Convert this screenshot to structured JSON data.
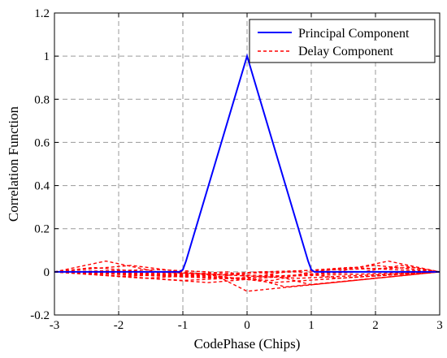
{
  "chart_data": {
    "type": "line",
    "title": "",
    "xlabel": "CodePhase (Chips)",
    "ylabel": "Correlation Function",
    "xlim": [
      -3,
      3
    ],
    "ylim": [
      -0.2,
      1.2
    ],
    "xticks": [
      "-3",
      "-2",
      "-1",
      "0",
      "1",
      "2",
      "3"
    ],
    "yticks": [
      "-0.2",
      "0",
      "0.2",
      "0.4",
      "0.6",
      "0.8",
      "1",
      "1.2"
    ],
    "grid": true,
    "legend_position": "top-right",
    "series": [
      {
        "name": "Principal Component",
        "color": "#0000ff",
        "style": "solid",
        "x": [
          -3,
          -1.05,
          -1,
          -0.95,
          0,
          0.95,
          1,
          1.05,
          3
        ],
        "y": [
          0,
          0,
          0.01,
          0.05,
          1.0,
          0.05,
          0.01,
          0,
          0
        ]
      },
      {
        "name": "Delay Component",
        "color": "#ff0000",
        "style": "dashed",
        "curves": [
          {
            "x": [
              -3,
              -2.4,
              -1.6,
              0.6,
              3
            ],
            "y": [
              0,
              0.02,
              0,
              -0.02,
              0
            ]
          },
          {
            "x": [
              -3,
              -2.2,
              -1.4,
              0.8,
              3
            ],
            "y": [
              0,
              0.05,
              0,
              -0.03,
              0
            ]
          },
          {
            "x": [
              -3,
              -1.8,
              -1.0,
              0.4,
              3
            ],
            "y": [
              0,
              0.03,
              0,
              -0.05,
              0
            ]
          },
          {
            "x": [
              -3,
              -1.4,
              -0.6,
              0.0,
              3
            ],
            "y": [
              0,
              0.01,
              0,
              -0.09,
              0
            ]
          },
          {
            "x": [
              -3,
              -0.9,
              -0.3,
              0.6,
              3
            ],
            "y": [
              0,
              -0.01,
              0,
              -0.07,
              0
            ]
          },
          {
            "x": [
              -3,
              -0.4,
              0.2,
              1.0,
              3
            ],
            "y": [
              0,
              -0.02,
              0,
              -0.06,
              0
            ]
          },
          {
            "x": [
              -3,
              0.0,
              0.6,
              1.6,
              3
            ],
            "y": [
              0,
              -0.03,
              0,
              0.02,
              0
            ]
          },
          {
            "x": [
              -3,
              0.4,
              1.0,
              2.0,
              3
            ],
            "y": [
              0,
              -0.04,
              0,
              0.03,
              0
            ]
          },
          {
            "x": [
              -3,
              -0.6,
              1.4,
              2.2,
              3
            ],
            "y": [
              0,
              -0.05,
              0,
              0.05,
              0
            ]
          },
          {
            "x": [
              -3,
              -1.0,
              1.8,
              2.4,
              3
            ],
            "y": [
              0,
              -0.04,
              0,
              0.03,
              0
            ]
          },
          {
            "x": [
              -3,
              -1.6,
              0.2,
              2.6,
              3
            ],
            "y": [
              0,
              -0.03,
              0,
              0.02,
              0
            ]
          },
          {
            "x": [
              -3,
              -2.0,
              0.8,
              1.4,
              3
            ],
            "y": [
              0,
              -0.02,
              0,
              -0.03,
              0
            ]
          }
        ]
      }
    ]
  }
}
